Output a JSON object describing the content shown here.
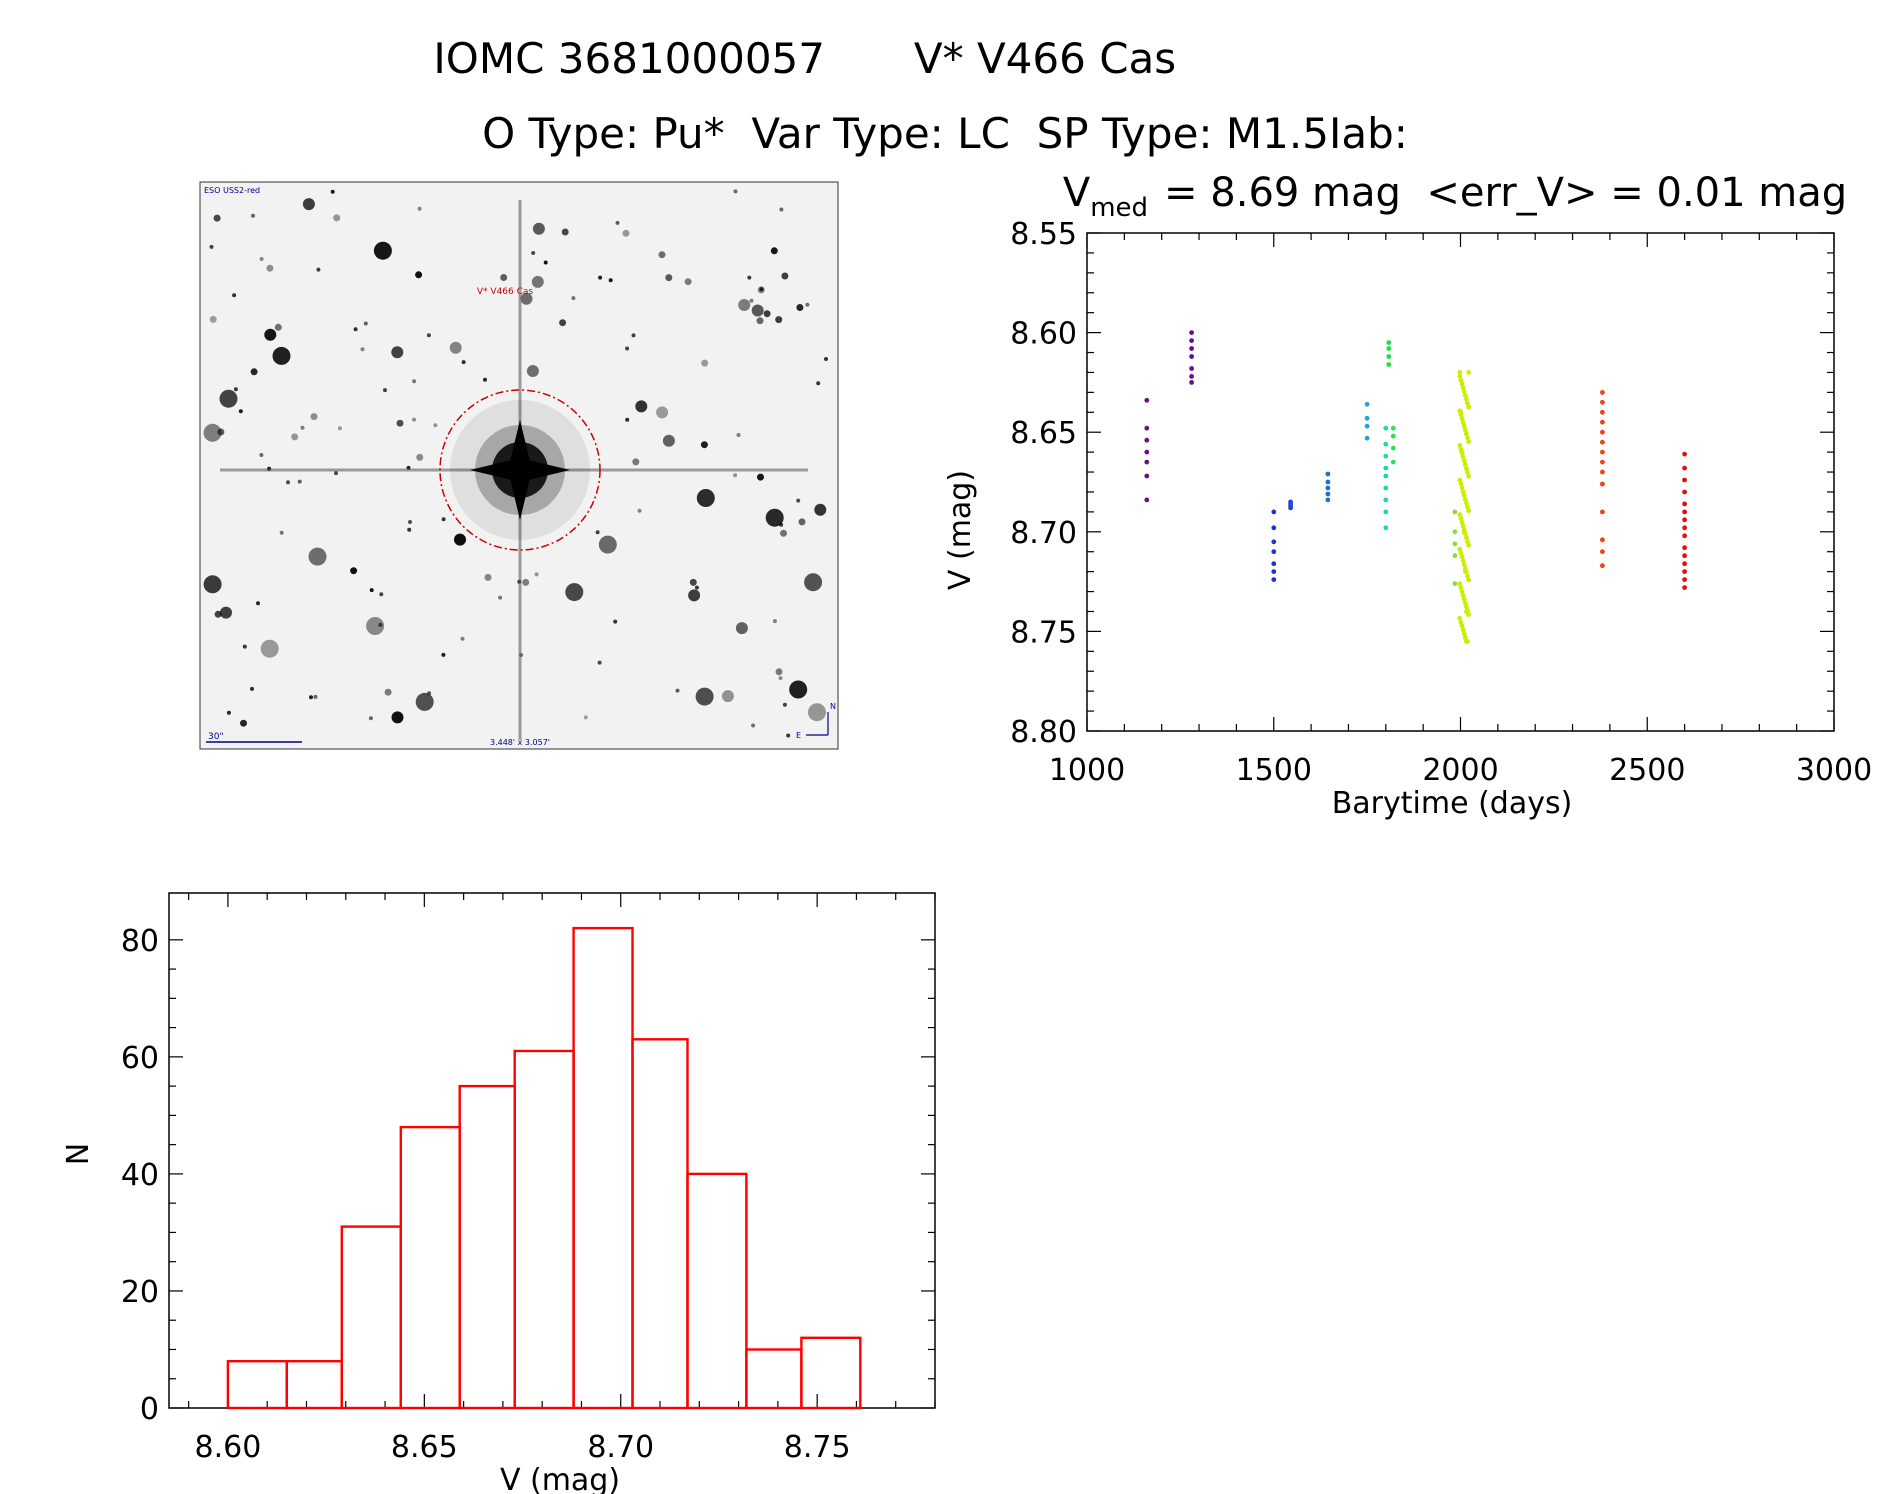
{
  "header": {
    "line1_id": "IOMC 3681000057",
    "line1_name": "V* V466 Cas",
    "line2": "O Type: Pu*  Var Type: LC  SP Type: M1.5Iab:"
  },
  "finder_image": {
    "survey_label": "ESO USS2-red",
    "target_label": "V* V466 Cas",
    "scale_label": "30\"",
    "fov_label": "3.448' x 3.057'",
    "north_label": "N",
    "east_label": "E",
    "circle_color": "#cc0000",
    "text_color": "#00008b"
  },
  "chart_data": [
    {
      "type": "scatter",
      "title_prefix": "V",
      "title_subscript": "med",
      "title_rest": "= 8.69 mag  <err_V> = 0.01 mag",
      "xlabel": "Barytime (days)",
      "ylabel": "V (mag)",
      "xlim": [
        1000,
        3000
      ],
      "ylim": [
        8.8,
        8.55
      ],
      "y_inverted": true,
      "xticks": [
        "1000",
        "1500",
        "2000",
        "2500",
        "3000"
      ],
      "yticks": [
        "8.55",
        "8.60",
        "8.65",
        "8.70",
        "8.75",
        "8.80"
      ],
      "grid": false,
      "groups": [
        {
          "x": 1160,
          "color": "#6a0f8a",
          "y": [
            8.634,
            8.648,
            8.654,
            8.66,
            8.665,
            8.672,
            8.684
          ]
        },
        {
          "x": 1280,
          "color": "#6a0f8a",
          "y": [
            8.6,
            8.604,
            8.608,
            8.612,
            8.618,
            8.622,
            8.625
          ]
        },
        {
          "x": 1500,
          "color": "#2233cc",
          "y": [
            8.69,
            8.698,
            8.705,
            8.71,
            8.716,
            8.72,
            8.724
          ]
        },
        {
          "x": 1545,
          "color": "#2244dd",
          "y": [
            8.685,
            8.686,
            8.687,
            8.688
          ]
        },
        {
          "x": 1645,
          "color": "#1f6fd0",
          "y": [
            8.671,
            8.675,
            8.678,
            8.681,
            8.684
          ]
        },
        {
          "x": 1750,
          "color": "#1aa7e0",
          "y": [
            8.636,
            8.643,
            8.647,
            8.653
          ]
        },
        {
          "x": 1800,
          "color": "#18d9b0",
          "y": [
            8.648,
            8.656,
            8.662,
            8.668,
            8.672,
            8.678,
            8.684,
            8.69,
            8.698
          ]
        },
        {
          "x": 1808,
          "color": "#22dd44",
          "y": [
            8.605,
            8.608,
            8.612,
            8.616
          ]
        },
        {
          "x": 1820,
          "color": "#33dd55",
          "y": [
            8.648,
            8.652,
            8.658,
            8.665
          ]
        },
        {
          "x": 1985,
          "color": "#88dd44",
          "y": [
            8.69,
            8.7,
            8.706,
            8.712,
            8.726
          ]
        },
        {
          "x": 2010,
          "color": "#ccee00",
          "y": [
            8.62,
            8.64,
            8.66,
            8.68,
            8.7,
            8.72,
            8.74,
            8.755
          ]
        },
        {
          "x": 2380,
          "color": "#ee4411",
          "y": [
            8.63,
            8.635,
            8.64,
            8.645,
            8.65,
            8.655,
            8.66,
            8.665,
            8.67,
            8.676,
            8.69,
            8.704,
            8.71,
            8.717
          ]
        },
        {
          "x": 2600,
          "color": "#dd1111",
          "y": [
            8.661,
            8.668,
            8.674,
            8.68,
            8.686,
            8.69,
            8.694,
            8.698,
            8.702,
            8.708,
            8.712,
            8.716,
            8.72,
            8.724,
            8.728
          ]
        }
      ]
    },
    {
      "type": "bar",
      "xlabel": "V (mag)",
      "ylabel": "N",
      "xlim": [
        8.585,
        8.78
      ],
      "ylim": [
        0,
        88
      ],
      "xticks": [
        "8.60",
        "8.65",
        "8.70",
        "8.75"
      ],
      "yticks": [
        "0",
        "20",
        "40",
        "60",
        "80"
      ],
      "bin_edges": [
        8.6,
        8.615,
        8.629,
        8.644,
        8.659,
        8.673,
        8.688,
        8.703,
        8.717,
        8.732,
        8.746,
        8.761
      ],
      "values": [
        8,
        8,
        31,
        48,
        55,
        61,
        82,
        63,
        40,
        10,
        12
      ],
      "bar_color": "#ff0000"
    }
  ]
}
